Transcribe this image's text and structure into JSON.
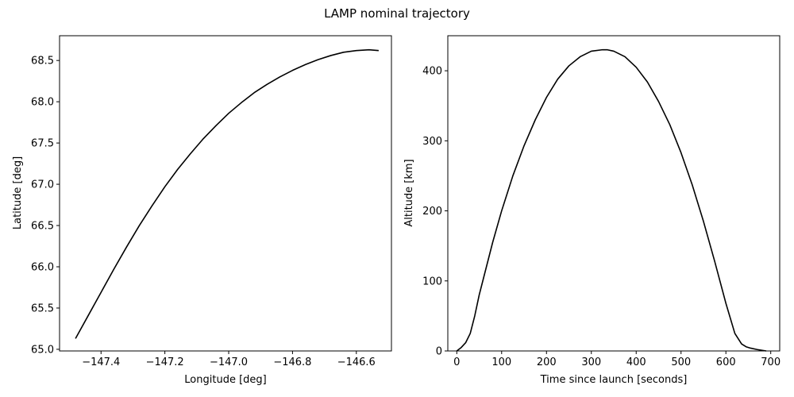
{
  "figure_title": "LAMP nominal trajectory",
  "line_color": "#000000",
  "chart_data": [
    {
      "type": "line",
      "title": "",
      "xlabel": "Longitude [deg]",
      "ylabel": "Latitude [deg]",
      "xlim": [
        -147.53,
        -146.49
      ],
      "ylim": [
        64.98,
        68.8
      ],
      "xticks": [
        -147.4,
        -147.2,
        -147.0,
        -146.8,
        -146.6
      ],
      "xtick_labels": [
        "−147.4",
        "−147.2",
        "−147.0",
        "−146.8",
        "−146.6"
      ],
      "yticks": [
        65.0,
        65.5,
        66.0,
        66.5,
        67.0,
        67.5,
        68.0,
        68.5
      ],
      "ytick_labels": [
        "65.0",
        "65.5",
        "66.0",
        "66.5",
        "67.0",
        "67.5",
        "68.0",
        "68.5"
      ],
      "series": [
        {
          "name": "trajectory",
          "x": [
            -147.48,
            -147.44,
            -147.4,
            -147.36,
            -147.32,
            -147.28,
            -147.24,
            -147.2,
            -147.16,
            -147.12,
            -147.08,
            -147.04,
            -147.0,
            -146.96,
            -146.92,
            -146.88,
            -146.84,
            -146.8,
            -146.76,
            -146.72,
            -146.68,
            -146.64,
            -146.6,
            -146.56,
            -146.53
          ],
          "y": [
            65.13,
            65.41,
            65.69,
            65.97,
            66.24,
            66.5,
            66.74,
            66.97,
            67.18,
            67.37,
            67.55,
            67.71,
            67.86,
            67.99,
            68.11,
            68.21,
            68.3,
            68.38,
            68.45,
            68.51,
            68.56,
            68.6,
            68.62,
            68.63,
            68.62
          ]
        }
      ]
    },
    {
      "type": "line",
      "title": "",
      "xlabel": "Time since launch [seconds]",
      "ylabel": "Altitude [km]",
      "xlim": [
        -20,
        720
      ],
      "ylim": [
        0,
        450
      ],
      "xticks": [
        0,
        100,
        200,
        300,
        400,
        500,
        600,
        700
      ],
      "xtick_labels": [
        "0",
        "100",
        "200",
        "300",
        "400",
        "500",
        "600",
        "700"
      ],
      "yticks": [
        0,
        100,
        200,
        300,
        400
      ],
      "ytick_labels": [
        "0",
        "100",
        "200",
        "300",
        "400"
      ],
      "series": [
        {
          "name": "altitude",
          "x": [
            0,
            10,
            20,
            30,
            40,
            50,
            60,
            80,
            100,
            125,
            150,
            175,
            200,
            225,
            250,
            275,
            300,
            325,
            335,
            350,
            375,
            400,
            425,
            450,
            475,
            500,
            525,
            550,
            575,
            600,
            620,
            635,
            645,
            655,
            670,
            690
          ],
          "y": [
            0,
            5,
            12,
            25,
            50,
            80,
            105,
            155,
            200,
            250,
            293,
            330,
            362,
            388,
            407,
            420,
            428,
            430,
            430,
            428,
            420,
            405,
            384,
            356,
            323,
            283,
            237,
            185,
            128,
            68,
            25,
            10,
            6,
            4,
            2,
            0
          ]
        }
      ]
    }
  ]
}
